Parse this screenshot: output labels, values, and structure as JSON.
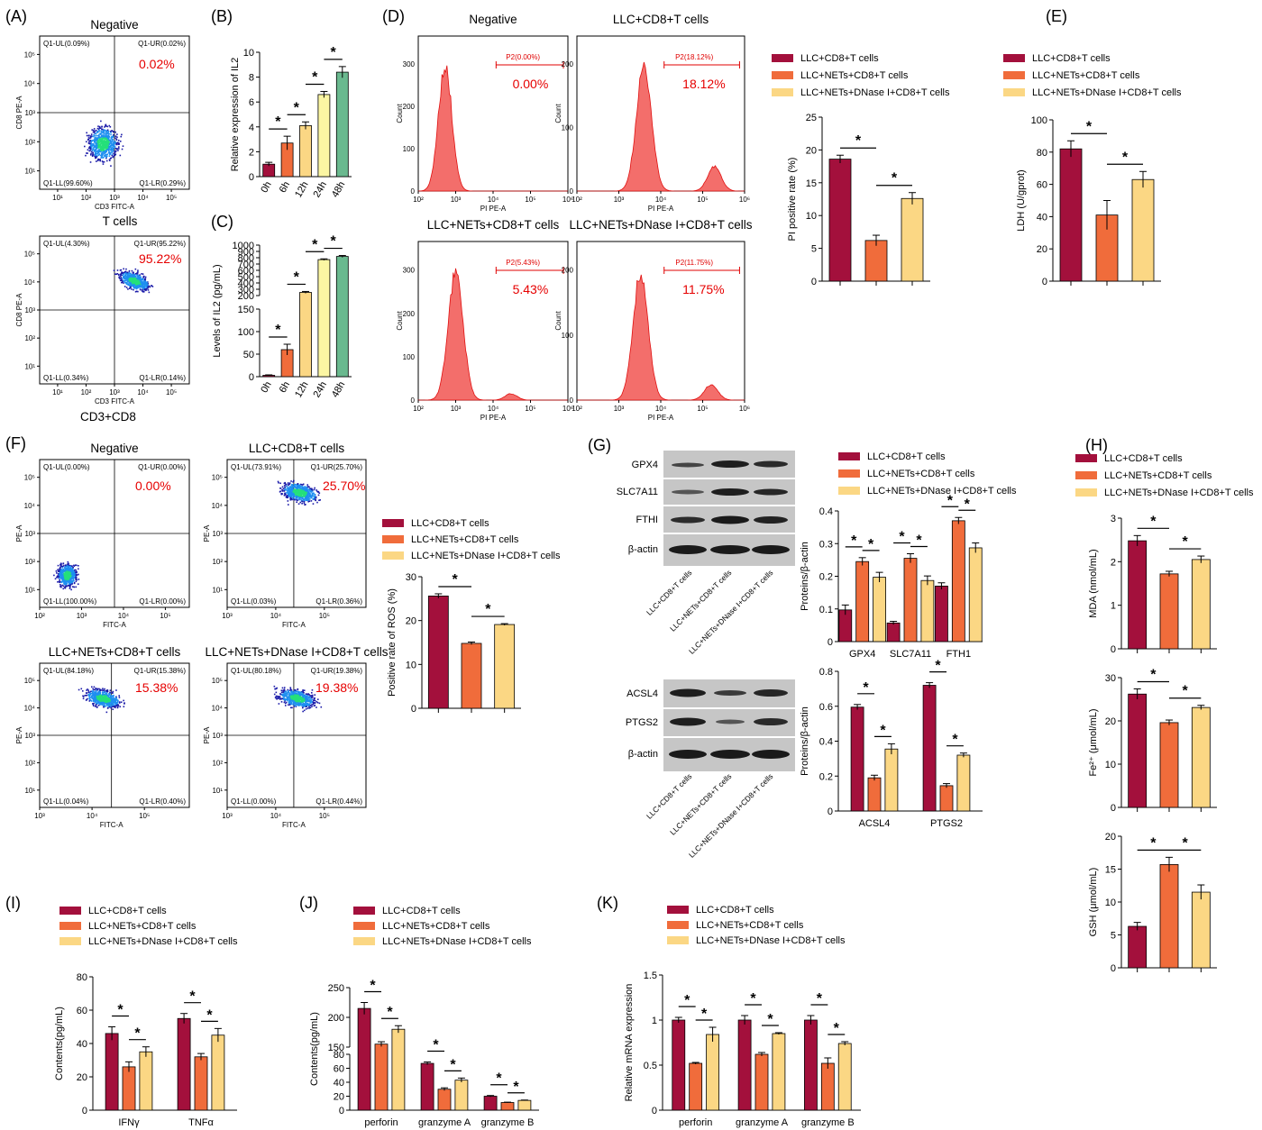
{
  "colors": {
    "c1": "#a3103c",
    "c2": "#f06c3b",
    "c3": "#fbd784",
    "hist": "#f36e6b",
    "dens_hi": "#25e07a",
    "dens_mid": "#1e8ff0",
    "dens_lo": "#1a1aa8",
    "quad_value": "#e60000",
    "blot_bg": "#c6c6c6",
    "band": "#1e1e1e"
  },
  "legend": [
    "LLC+CD8+T cells",
    "LLC+NETs+CD8+T cells",
    "LLC+NETs+DNase I+CD8+T cells"
  ],
  "A": {
    "label": "(A)",
    "plots": [
      {
        "title": "Negative",
        "ylab": "CD8 PE-A",
        "xlab": "CD3 FITC-A",
        "caption": "T cells",
        "ul": "Q1-UL(0.09%)",
        "ur": "Q1-UR(0.02%)",
        "ll": "Q1-LL(99.60%)",
        "lr": "Q1-LR(0.29%)",
        "big": "0.02%"
      },
      {
        "title": "",
        "ylab": "CD8 PE-A",
        "xlab": "CD3 FITC-A",
        "caption": "CD3+CD8",
        "ul": "Q1-UL(4.30%)",
        "ur": "Q1-UR(95.22%)",
        "ll": "Q1-LL(0.34%)",
        "lr": "Q1-LR(0.14%)",
        "big": "95.22%"
      }
    ],
    "xticks": [
      "10¹",
      "10²",
      "10³",
      "10⁴",
      "10⁵"
    ],
    "yticks": [
      "10⁵",
      "10⁴",
      "10³",
      "10²",
      "10¹"
    ]
  },
  "F": {
    "label": "(F)",
    "plots": [
      {
        "title": "Negative",
        "ul": "Q1-UL(0.00%)",
        "ur": "Q1-UR(0.00%)",
        "ll": "Q1-LL(100.00%)",
        "lr": "Q1-LR(0.00%)",
        "big": "0.00%"
      },
      {
        "title": "LLC+CD8+T cells",
        "ul": "Q1-UL(73.91%)",
        "ur": "Q1-UR(25.70%)",
        "ll": "Q1-LL(0.03%)",
        "lr": "Q1-LR(0.36%)",
        "big": "25.70%"
      },
      {
        "title": "LLC+NETs+CD8+T cells",
        "ul": "Q1-UL(84.18%)",
        "ur": "Q1-UR(15.38%)",
        "ll": "Q1-LL(0.04%)",
        "lr": "Q1-LR(0.40%)",
        "big": "15.38%"
      },
      {
        "title": "LLC+NETs+DNase I+CD8+T cells",
        "ul": "Q1-UL(80.18%)",
        "ur": "Q1-UR(19.38%)",
        "ll": "Q1-LL(0.00%)",
        "lr": "Q1-LR(0.44%)",
        "big": "19.38%"
      }
    ],
    "xlab": "FITC-A",
    "ylab": "PE-A",
    "xticks": [
      "10³",
      "10⁴",
      "10⁵"
    ],
    "yticks": [
      "10⁵",
      "10⁴",
      "10³",
      "10²",
      "10¹"
    ],
    "neg_xticks": [
      "10²",
      "10³",
      "10⁴",
      "10⁵"
    ]
  },
  "D": {
    "label": "(D)",
    "plots": [
      {
        "title": "Negative",
        "gate": "P2(0.00%)",
        "big": "0.00%"
      },
      {
        "title": "LLC+CD8+T cells",
        "gate": "P2(18.12%)",
        "big": "18.12%"
      },
      {
        "title": "LLC+NETs+CD8+T cells",
        "gate": "P2(5.43%)",
        "big": "5.43%"
      },
      {
        "title": "LLC+NETs+DNase I+CD8+T cells",
        "gate": "P2(11.75%)",
        "big": "11.75%"
      }
    ],
    "xlab": "PI PE-A",
    "ylab": "Count",
    "xticks": [
      "10²",
      "10³",
      "10⁴",
      "10⁵",
      "10⁶"
    ]
  },
  "G": {
    "label": "(G)",
    "blot1_rows": [
      "GPX4",
      "SLC7A11",
      "FTHI",
      "β-actin"
    ],
    "blot2_rows": [
      "ACSL4",
      "PTGS2",
      "β-actin"
    ]
  },
  "chart_data": [
    {
      "id": "B",
      "type": "bar",
      "label": "(B)",
      "ylabel": "Relative expression of IL2",
      "categories": [
        "0h",
        "6h",
        "12h",
        "24h",
        "48h"
      ],
      "values": [
        1.0,
        2.7,
        4.1,
        6.6,
        8.4
      ],
      "errors": [
        0.15,
        0.55,
        0.3,
        0.25,
        0.45
      ],
      "ylim": [
        0,
        10
      ],
      "yticks": [
        0,
        2,
        4,
        6,
        8,
        10
      ],
      "colors": [
        "#a3103c",
        "#f06c3b",
        "#fbd784",
        "#fbf6a3",
        "#6ab98f"
      ],
      "sig": "*"
    },
    {
      "id": "C",
      "type": "bar",
      "label": "(C)",
      "ylabel": "Levels of IL2 (pg/mL)",
      "categories": [
        "0h",
        "6h",
        "12h",
        "24h",
        "48h"
      ],
      "values": [
        3,
        60,
        250,
        770,
        820
      ],
      "errors": [
        1,
        12,
        15,
        12,
        15
      ],
      "ylim": [
        0,
        1000
      ],
      "yticks": [
        0,
        50,
        100,
        150,
        200,
        300,
        400,
        500,
        600,
        700,
        800,
        900,
        1000
      ],
      "colors": [
        "#a3103c",
        "#f06c3b",
        "#fbd784",
        "#fbf6a3",
        "#6ab98f"
      ],
      "sig": "*"
    },
    {
      "id": "D2",
      "type": "bar",
      "ylabel": "PI positive rate (%)",
      "values": [
        18.6,
        6.2,
        12.6
      ],
      "errors": [
        0.6,
        0.8,
        0.9
      ],
      "ylim": [
        0,
        25
      ],
      "yticks": [
        0,
        5,
        10,
        15,
        20,
        25
      ],
      "sig": "*"
    },
    {
      "id": "E",
      "type": "bar",
      "label": "(E)",
      "ylabel": "LDH (U/gprot)",
      "values": [
        82,
        41,
        63
      ],
      "errors": [
        5,
        9,
        5
      ],
      "ylim": [
        0,
        100
      ],
      "yticks": [
        0,
        20,
        40,
        60,
        80,
        100
      ],
      "sig": "*"
    },
    {
      "id": "F2",
      "type": "bar",
      "ylabel": "Positive rate of ROS (%)",
      "values": [
        25.6,
        14.8,
        19.1
      ],
      "errors": [
        0.5,
        0.3,
        0.2
      ],
      "ylim": [
        0,
        30
      ],
      "yticks": [
        0,
        10,
        20,
        30
      ],
      "sig": "*"
    },
    {
      "id": "G1",
      "type": "bar",
      "ylabel": "Proteins/β-actin",
      "categories": [
        "GPX4",
        "SLC7A11",
        "FTH1"
      ],
      "series": [
        {
          "name": "LLC+CD8+T cells",
          "values": [
            0.097,
            0.057,
            0.17
          ]
        },
        {
          "name": "LLC+NETs+CD8+T cells",
          "values": [
            0.245,
            0.255,
            0.37
          ]
        },
        {
          "name": "LLC+NETs+DNase I+CD8+T cells",
          "values": [
            0.197,
            0.187,
            0.287
          ]
        }
      ],
      "errors": [
        [
          0.015,
          0.005,
          0.01
        ],
        [
          0.012,
          0.014,
          0.01
        ],
        [
          0.015,
          0.014,
          0.015
        ]
      ],
      "ylim": [
        0,
        0.4
      ],
      "yticks": [
        0.0,
        0.1,
        0.2,
        0.3,
        0.4
      ],
      "sig": "*"
    },
    {
      "id": "G2",
      "type": "bar",
      "ylabel": "Proteins/β-actin",
      "categories": [
        "ACSL4",
        "PTGS2"
      ],
      "series": [
        {
          "name": "LLC+CD8+T cells",
          "values": [
            0.595,
            0.72
          ]
        },
        {
          "name": "LLC+NETs+CD8+T cells",
          "values": [
            0.19,
            0.145
          ]
        },
        {
          "name": "LLC+NETs+DNase I+CD8+T cells",
          "values": [
            0.355,
            0.32
          ]
        }
      ],
      "errors": [
        [
          0.015,
          0.015
        ],
        [
          0.015,
          0.012
        ],
        [
          0.03,
          0.012
        ]
      ],
      "ylim": [
        0,
        0.8
      ],
      "yticks": [
        0.0,
        0.2,
        0.4,
        0.6,
        0.8
      ],
      "sig": "*"
    },
    {
      "id": "H1",
      "type": "bar",
      "label": "(H)",
      "ylabel": "MDA (nmol/mL)",
      "values": [
        2.48,
        1.72,
        2.05
      ],
      "errors": [
        0.12,
        0.06,
        0.08
      ],
      "ylim": [
        0,
        3
      ],
      "yticks": [
        0,
        1,
        2,
        3
      ],
      "sig": "*"
    },
    {
      "id": "H2",
      "type": "bar",
      "ylabel": "Fe²⁺ (μmol/mL)",
      "values": [
        26.2,
        19.6,
        23.1
      ],
      "errors": [
        1.2,
        0.6,
        0.5
      ],
      "ylim": [
        0,
        30
      ],
      "yticks": [
        0,
        10,
        20,
        30
      ],
      "sig": "*"
    },
    {
      "id": "H3",
      "type": "bar",
      "ylabel": "GSH (μmol/mL)",
      "values": [
        6.3,
        15.7,
        11.5
      ],
      "errors": [
        0.6,
        1.1,
        1.1
      ],
      "ylim": [
        0,
        20
      ],
      "yticks": [
        0,
        5,
        10,
        15,
        20
      ],
      "sig": "*"
    },
    {
      "id": "I",
      "type": "bar",
      "label": "(I)",
      "ylabel": "Contents(pg/mL)",
      "categories": [
        "IFNγ",
        "TNFα"
      ],
      "series": [
        {
          "name": "LLC+CD8+T cells",
          "values": [
            46,
            55
          ]
        },
        {
          "name": "LLC+NETs+CD8+T cells",
          "values": [
            26,
            32
          ]
        },
        {
          "name": "LLC+NETs+DNase I+CD8+T cells",
          "values": [
            35,
            45
          ]
        }
      ],
      "errors": [
        [
          4,
          3
        ],
        [
          3,
          2
        ],
        [
          3,
          4
        ]
      ],
      "ylim": [
        0,
        80
      ],
      "yticks": [
        0,
        20,
        40,
        60,
        80
      ],
      "sig": "*"
    },
    {
      "id": "J",
      "type": "bar",
      "label": "(J)",
      "ylabel": "Contents(pg/mL)",
      "categories": [
        "perforin",
        "granzyme A",
        "granzyme B"
      ],
      "series": [
        {
          "name": "LLC+CD8+T cells",
          "values": [
            215,
            67,
            20
          ]
        },
        {
          "name": "LLC+NETs+CD8+T cells",
          "values": [
            155,
            30,
            11
          ]
        },
        {
          "name": "LLC+NETs+DNase I+CD8+T cells",
          "values": [
            180,
            43,
            14
          ]
        }
      ],
      "errors": [
        [
          10,
          2,
          1
        ],
        [
          4,
          2,
          0.5
        ],
        [
          6,
          3,
          0.5
        ]
      ],
      "ylim": [
        0,
        250
      ],
      "yticks": [
        0,
        20,
        40,
        60,
        80,
        150,
        200,
        250
      ],
      "sig": "*"
    },
    {
      "id": "K",
      "type": "bar",
      "label": "(K)",
      "ylabel": "Relative mRNA expression",
      "categories": [
        "perforin",
        "granzyme A",
        "granzyme B"
      ],
      "series": [
        {
          "name": "LLC+CD8+T cells",
          "values": [
            1.0,
            1.0,
            1.0
          ]
        },
        {
          "name": "LLC+NETs+CD8+T cells",
          "values": [
            0.52,
            0.62,
            0.52
          ]
        },
        {
          "name": "LLC+NETs+DNase I+CD8+T cells",
          "values": [
            0.84,
            0.85,
            0.74
          ]
        }
      ],
      "errors": [
        [
          0.03,
          0.05,
          0.05
        ],
        [
          0.01,
          0.02,
          0.06
        ],
        [
          0.08,
          0.01,
          0.02
        ]
      ],
      "ylim": [
        0,
        1.5
      ],
      "yticks": [
        0.0,
        0.5,
        1.0,
        1.5
      ],
      "sig": "*"
    }
  ]
}
